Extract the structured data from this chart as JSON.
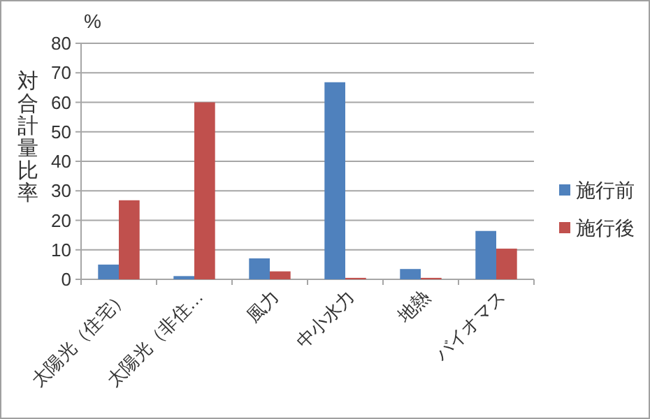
{
  "chart_data": {
    "type": "bar",
    "ylabel": "対合計量比率",
    "annotations": [
      "%"
    ],
    "categories": [
      "太陽光（住宅）",
      "太陽光（非住…",
      "風力",
      "中小水力",
      "地熱",
      "バイオマス"
    ],
    "series": [
      {
        "name": "施行前",
        "color": "#4f81bd",
        "values": [
          5.0,
          1.1,
          7.1,
          66.8,
          3.5,
          16.4
        ]
      },
      {
        "name": "施行後",
        "color": "#c0504d",
        "values": [
          26.8,
          60.0,
          2.7,
          0.5,
          0.5,
          10.4
        ]
      }
    ],
    "ylim": [
      0,
      80
    ],
    "yticks": [
      0,
      10,
      20,
      30,
      40,
      50,
      60,
      70,
      80
    ],
    "grid": "y",
    "legend": "right"
  }
}
